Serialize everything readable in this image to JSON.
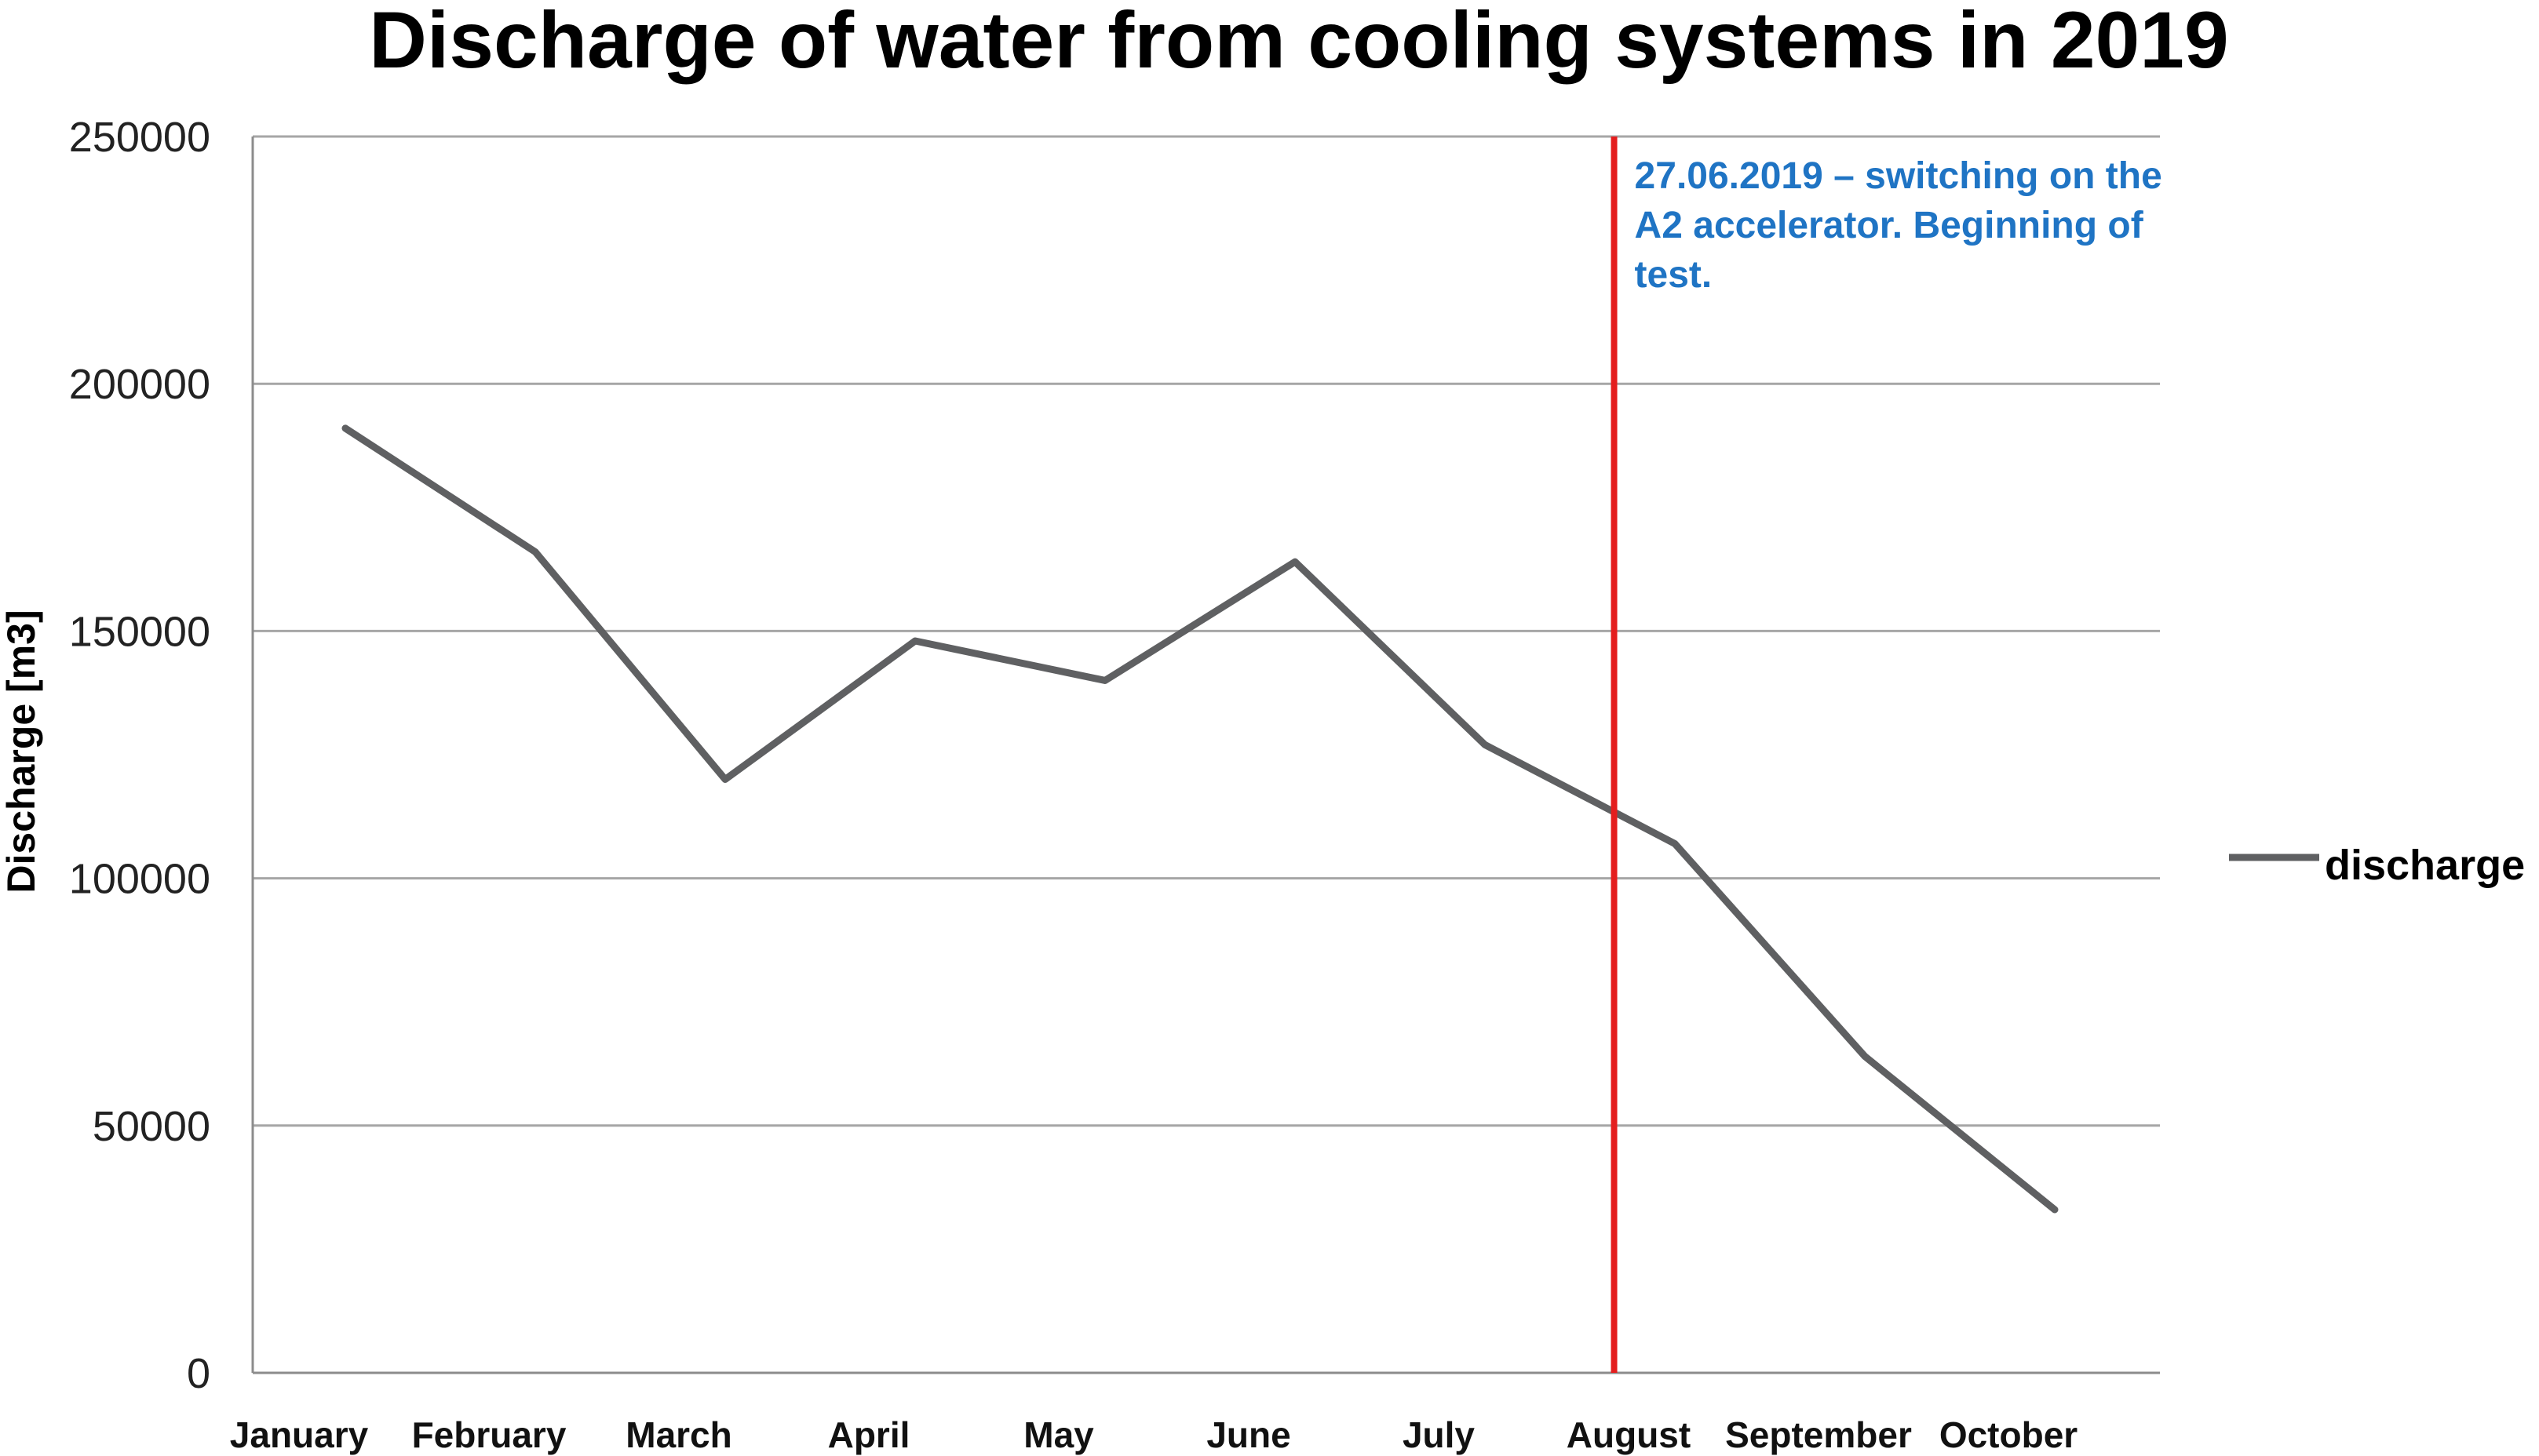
{
  "chart_data": {
    "type": "line",
    "title": "Discharge of water from cooling systems in 2019",
    "xlabel": "",
    "ylabel": "Discharge [m3]",
    "ylim": [
      0,
      250000
    ],
    "yticks": [
      0,
      50000,
      100000,
      150000,
      200000,
      250000
    ],
    "ytick_labels": [
      "0",
      "50000",
      "100000",
      "150000",
      "200000",
      "250000"
    ],
    "grid": true,
    "categories": [
      "January",
      "February",
      "March",
      "April",
      "May",
      "June",
      "July",
      "August",
      "September",
      "October"
    ],
    "series": [
      {
        "name": "discharge",
        "color": "#5f6062",
        "values": [
          191000,
          166000,
          120000,
          148000,
          140000,
          164000,
          127000,
          107000,
          64000,
          33000
        ]
      }
    ],
    "legend": {
      "position": "right",
      "entries": [
        "discharge"
      ]
    },
    "annotation": {
      "lines": [
        "27.06.2019 – switching on the",
        "A2 accelerator.  Beginning of",
        "test."
      ],
      "color": "#1f74c4",
      "marker_color": "#e41e1e",
      "marker_category_position": 6.68
    }
  }
}
